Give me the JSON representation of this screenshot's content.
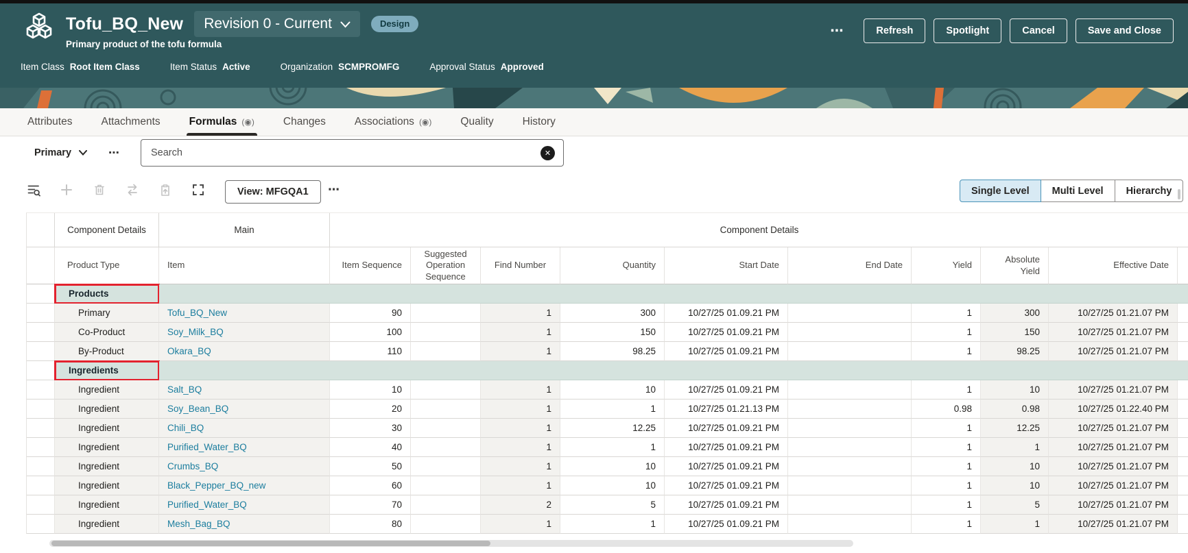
{
  "header": {
    "title": "Tofu_BQ_New",
    "subtitle": "Primary product of the tofu formula",
    "revision_selector": "Revision 0 - Current",
    "lifecycle_badge": "Design",
    "overflow_menu": "⋯",
    "actions": [
      "Refresh",
      "Spotlight",
      "Cancel",
      "Save and Close"
    ],
    "meta": [
      {
        "label": "Item Class",
        "value": "Root Item Class"
      },
      {
        "label": "Item Status",
        "value": "Active"
      },
      {
        "label": "Organization",
        "value": "SCMPROMFG"
      },
      {
        "label": "Approval Status",
        "value": "Approved"
      }
    ]
  },
  "tabs": [
    {
      "label": "Attributes"
    },
    {
      "label": "Attachments"
    },
    {
      "label": "Formulas",
      "indicator": true,
      "active": true
    },
    {
      "label": "Changes"
    },
    {
      "label": "Associations",
      "indicator": true
    },
    {
      "label": "Quality"
    },
    {
      "label": "History"
    }
  ],
  "filter": {
    "type_selector": "Primary",
    "overflow_menu": "⋯",
    "search_placeholder": "Search"
  },
  "toolbar": {
    "icons": [
      "filter-list-search",
      "add",
      "delete",
      "swap",
      "paste-up",
      "expand"
    ],
    "view_button": "View: MFGQA1",
    "overflow_menu": "⋯",
    "level_toggle": [
      "Single Level",
      "Multi Level",
      "Hierarchy"
    ],
    "level_selected": "Single Level"
  },
  "table": {
    "group_headers": [
      "Component Details",
      "Main",
      "Component Details"
    ],
    "columns": [
      "Product Type",
      "Item",
      "Item Sequence",
      "Suggested Operation Sequence",
      "Find Number",
      "Quantity",
      "Start Date",
      "End Date",
      "Yield",
      "Absolute Yield",
      "Effective Date"
    ],
    "sections": [
      {
        "name": "Products",
        "annotated": true,
        "rows": [
          [
            "Primary",
            "Tofu_BQ_New",
            "90",
            "",
            "1",
            "300",
            "10/27/25 01.09.21 PM",
            "",
            "1",
            "300",
            "10/27/25 01.21.07 PM"
          ],
          [
            "Co-Product",
            "Soy_Milk_BQ",
            "100",
            "",
            "1",
            "150",
            "10/27/25 01.09.21 PM",
            "",
            "1",
            "150",
            "10/27/25 01.21.07 PM"
          ],
          [
            "By-Product",
            "Okara_BQ",
            "110",
            "",
            "1",
            "98.25",
            "10/27/25 01.09.21 PM",
            "",
            "1",
            "98.25",
            "10/27/25 01.21.07 PM"
          ]
        ]
      },
      {
        "name": "Ingredients",
        "annotated": true,
        "rows": [
          [
            "Ingredient",
            "Salt_BQ",
            "10",
            "",
            "1",
            "10",
            "10/27/25 01.09.21 PM",
            "",
            "1",
            "10",
            "10/27/25 01.21.07 PM"
          ],
          [
            "Ingredient",
            "Soy_Bean_BQ",
            "20",
            "",
            "1",
            "1",
            "10/27/25 01.21.13 PM",
            "",
            "0.98",
            "0.98",
            "10/27/25 01.22.40 PM"
          ],
          [
            "Ingredient",
            "Chili_BQ",
            "30",
            "",
            "1",
            "12.25",
            "10/27/25 01.09.21 PM",
            "",
            "1",
            "12.25",
            "10/27/25 01.21.07 PM"
          ],
          [
            "Ingredient",
            "Purified_Water_BQ",
            "40",
            "",
            "1",
            "1",
            "10/27/25 01.09.21 PM",
            "",
            "1",
            "1",
            "10/27/25 01.21.07 PM"
          ],
          [
            "Ingredient",
            "Crumbs_BQ",
            "50",
            "",
            "1",
            "10",
            "10/27/25 01.09.21 PM",
            "",
            "1",
            "10",
            "10/27/25 01.21.07 PM"
          ],
          [
            "Ingredient",
            "Black_Pepper_BQ_new",
            "60",
            "",
            "1",
            "10",
            "10/27/25 01.09.21 PM",
            "",
            "1",
            "10",
            "10/27/25 01.21.07 PM"
          ],
          [
            "Ingredient",
            "Purified_Water_BQ",
            "70",
            "",
            "2",
            "5",
            "10/27/25 01.09.21 PM",
            "",
            "1",
            "5",
            "10/27/25 01.21.07 PM"
          ],
          [
            "Ingredient",
            "Mesh_Bag_BQ",
            "80",
            "",
            "1",
            "1",
            "10/27/25 01.09.21 PM",
            "",
            "1",
            "1",
            "10/27/25 01.21.07 PM"
          ]
        ]
      }
    ]
  },
  "icons": {
    "tab_indicator": "(◉)",
    "clear_search": "✕"
  },
  "colors": {
    "header_bg": "#2F585C",
    "revision_bg": "#41696D",
    "badge_bg": "#7FACBD",
    "section_row_bg": "#D5E3DE",
    "readonly_cell_bg": "#F3F2EF",
    "link": "#1B7D9E",
    "annotation": "#E3222E",
    "selected_level_bg": "#D8EAF4",
    "selected_level_border": "#4A93B8"
  }
}
